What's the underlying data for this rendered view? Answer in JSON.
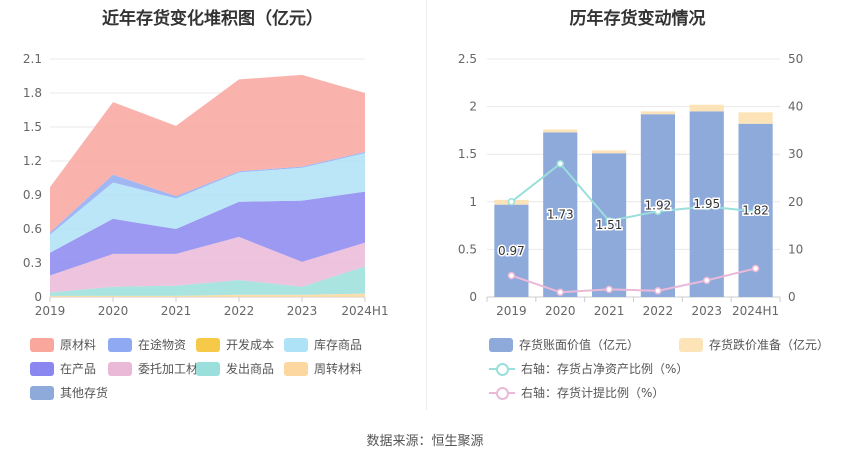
{
  "chart_data": [
    {
      "type": "area",
      "stacked": true,
      "title": "近年存货变化堆积图（亿元）",
      "categories": [
        "2019",
        "2020",
        "2021",
        "2022",
        "2023",
        "2024H1"
      ],
      "ylim": [
        0,
        2.1
      ],
      "yticks": [
        "0",
        "0.3",
        "0.6",
        "0.9",
        "1.2",
        "1.5",
        "1.8",
        "2.1"
      ],
      "grid": true,
      "legend_position": "bottom",
      "series": [
        {
          "name": "原材料",
          "color": "#f9a69d",
          "values": [
            0.4,
            0.64,
            0.62,
            0.81,
            0.81,
            0.52
          ]
        },
        {
          "name": "在途物资",
          "color": "#8faaf2",
          "values": [
            0.02,
            0.07,
            0.02,
            0.01,
            0.01,
            0.01
          ]
        },
        {
          "name": "开发成本",
          "color": "#f7c948",
          "values": [
            0,
            0,
            0,
            0,
            0,
            0
          ]
        },
        {
          "name": "库存商品",
          "color": "#aee2f7",
          "values": [
            0.16,
            0.32,
            0.27,
            0.26,
            0.29,
            0.34
          ]
        },
        {
          "name": "在产品",
          "color": "#8b87f0",
          "values": [
            0.2,
            0.31,
            0.22,
            0.31,
            0.54,
            0.45
          ]
        },
        {
          "name": "委托加工材料",
          "color": "#ebb9d8",
          "values": [
            0.15,
            0.29,
            0.28,
            0.38,
            0.22,
            0.21
          ]
        },
        {
          "name": "发出商品",
          "color": "#9adfdb",
          "values": [
            0.03,
            0.08,
            0.09,
            0.13,
            0.07,
            0.24
          ]
        },
        {
          "name": "周转材料",
          "color": "#fcd8a0",
          "values": [
            0.01,
            0.01,
            0.01,
            0.02,
            0.02,
            0.03
          ]
        },
        {
          "name": "其他存货",
          "color": "#8eaadb",
          "values": [
            0,
            0,
            0,
            0,
            0,
            0
          ]
        }
      ]
    },
    {
      "type": "bar",
      "title": "历年存货变动情况",
      "categories": [
        "2019",
        "2020",
        "2021",
        "2022",
        "2023",
        "2024H1"
      ],
      "ylim": [
        0,
        2.5
      ],
      "yticks": [
        "0",
        "0.5",
        "1",
        "1.5",
        "2",
        "2.5"
      ],
      "y2lim": [
        0,
        50
      ],
      "y2ticks": [
        "0",
        "10",
        "20",
        "30",
        "40",
        "50"
      ],
      "grid": true,
      "legend_position": "bottom",
      "bars": [
        {
          "name": "存货账面价值（亿元）",
          "color": "#8eaadb",
          "values": [
            0.97,
            1.73,
            1.51,
            1.92,
            1.95,
            1.82
          ],
          "labels": [
            "0.97",
            "1.73",
            "1.51",
            "1.92",
            "1.95",
            "1.82"
          ]
        },
        {
          "name": "存货跌价准备（亿元）",
          "color": "#fde3b8",
          "values": [
            0.05,
            0.03,
            0.03,
            0.03,
            0.07,
            0.12
          ]
        }
      ],
      "lines": [
        {
          "name": "右轴：存货占净资产比例（%）",
          "color": "#9adfdb",
          "axis": "right",
          "values": [
            20,
            28,
            16,
            18,
            19,
            18
          ]
        },
        {
          "name": "右轴：存货计提比例（%）",
          "color": "#ebb9d8",
          "axis": "right",
          "values": [
            4.5,
            1.0,
            1.6,
            1.3,
            3.5,
            6.0
          ]
        }
      ]
    }
  ],
  "source": "数据来源：恒生聚源"
}
